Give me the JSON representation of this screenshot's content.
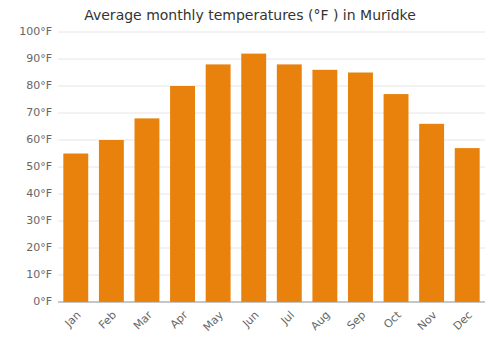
{
  "chart_data": {
    "type": "bar",
    "title": "Average monthly temperatures (°F ) in Murīdke",
    "categories": [
      "Jan",
      "Feb",
      "Mar",
      "Apr",
      "May",
      "Jun",
      "Jul",
      "Aug",
      "Sep",
      "Oct",
      "Nov",
      "Dec"
    ],
    "values": [
      55,
      60,
      68,
      80,
      88,
      92,
      88,
      86,
      85,
      77,
      66,
      57
    ],
    "color": "#E8820C",
    "ylim": [
      0,
      100
    ],
    "yticks": [
      {
        "value": 0,
        "label": "0°F"
      },
      {
        "value": 10,
        "label": "10°F"
      },
      {
        "value": 20,
        "label": "20°F"
      },
      {
        "value": 30,
        "label": "30°F"
      },
      {
        "value": 40,
        "label": "40°F"
      },
      {
        "value": 50,
        "label": "50°F"
      },
      {
        "value": 60,
        "label": "60°F"
      },
      {
        "value": 70,
        "label": "70°F"
      },
      {
        "value": 80,
        "label": "80°F"
      },
      {
        "value": 90,
        "label": "90°F"
      },
      {
        "value": 100,
        "label": "100°F"
      }
    ],
    "grid": true
  }
}
